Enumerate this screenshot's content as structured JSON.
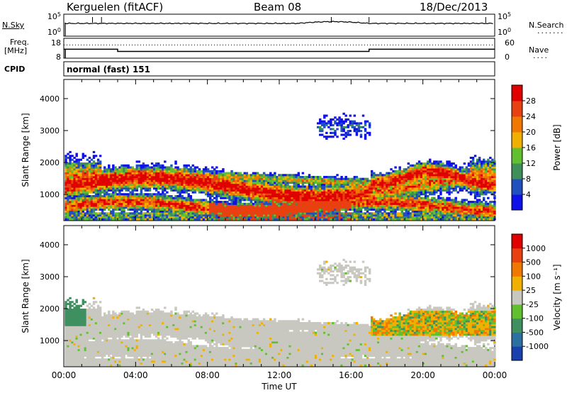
{
  "header": {
    "station": "Kerguelen (fitACF)",
    "beam": "Beam 08",
    "date": "18/Dec/2013"
  },
  "side_labels": {
    "nsky": "N.Sky",
    "nsearch": "N.Search",
    "freq_line1": "Freq.",
    "freq_line2": "[MHz]",
    "nave": "Nave",
    "cpid": "CPID",
    "cpid_value": "normal (fast) 151"
  },
  "chart_data": [
    {
      "type": "line",
      "panel": "noise",
      "left_ticks": [
        "10^5",
        "10^0"
      ],
      "right_ticks": [
        "10^5",
        "10^0"
      ],
      "series": [
        {
          "name": "N.Sky",
          "style": "solid",
          "level": "near top, slight bump ~13:00-17:00"
        },
        {
          "name": "N.Search",
          "style": "dotted"
        }
      ]
    },
    {
      "type": "line",
      "panel": "frequency",
      "left_ticks": [
        "18",
        "8"
      ],
      "right_ticks": [
        "60",
        "0"
      ],
      "series": [
        {
          "name": "Freq.",
          "style": "solid",
          "x": [
            0,
            3,
            3,
            17,
            17,
            24
          ],
          "y": [
            12.5,
            12.5,
            11.4,
            11.4,
            12.5,
            12.5
          ]
        },
        {
          "name": "Nave",
          "style": "dotted",
          "x": [
            0,
            24
          ],
          "y": [
            40,
            40
          ]
        }
      ]
    },
    {
      "type": "heatmap",
      "panel": "power",
      "ylabel": "Slant Range [km]",
      "yticks": [
        "4000",
        "3000",
        "2000",
        "1000"
      ],
      "ylim": [
        180,
        4600
      ],
      "xlim": [
        0,
        24
      ],
      "colorbar_label": "Power [dB]",
      "colorbar_ticks": [
        "28",
        "24",
        "20",
        "16",
        "12",
        "8",
        "4"
      ],
      "colors": [
        "#1010e8",
        "#2050c0",
        "#3f8f58",
        "#60c030",
        "#f0b000",
        "#f07800",
        "#e84010",
        "#e00000"
      ]
    },
    {
      "type": "heatmap",
      "panel": "velocity",
      "ylabel": "Slant Range [km]",
      "yticks": [
        "4000",
        "3000",
        "2000",
        "1000"
      ],
      "ylim": [
        180,
        4600
      ],
      "xlim": [
        0,
        24
      ],
      "xticks": [
        "00:00",
        "04:00",
        "08:00",
        "12:00",
        "16:00",
        "20:00",
        "00:00"
      ],
      "xlabel": "Time UT",
      "colorbar_label": "Velocity [m s⁻¹]",
      "colorbar_ticks": [
        "1000",
        "500",
        "100",
        "25",
        "-25",
        "-100",
        "-500",
        "-1000"
      ],
      "colors": [
        "#1a40b0",
        "#2a70a0",
        "#3f9060",
        "#60c030",
        "#c8c8c0",
        "#f0b000",
        "#f07800",
        "#e84010",
        "#e00000"
      ]
    }
  ]
}
